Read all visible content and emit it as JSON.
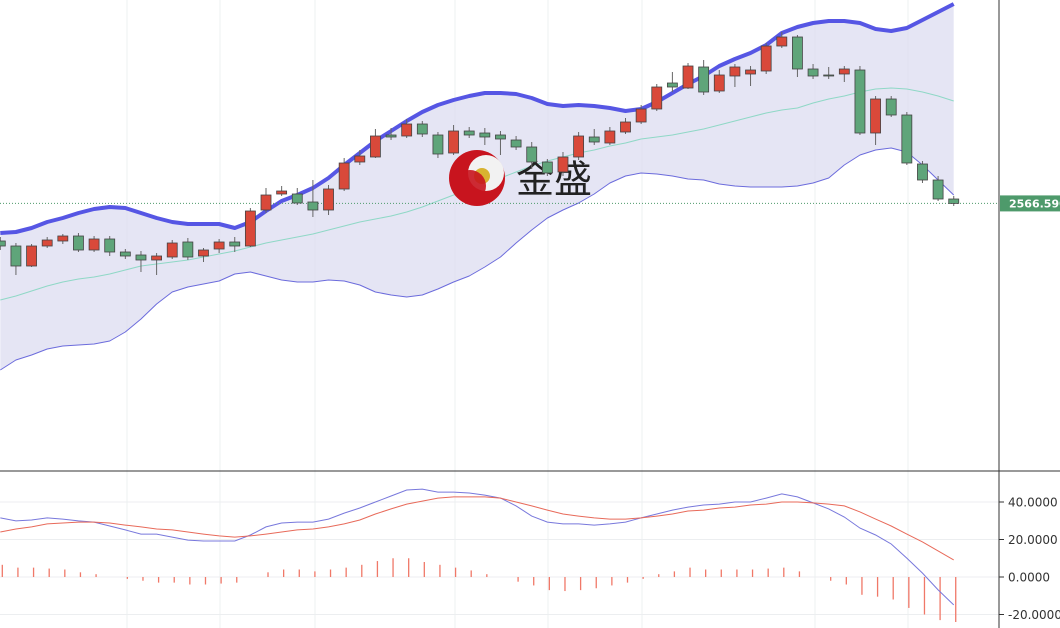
{
  "chart_data": [
    {
      "type": "candlestick",
      "watermark": "金盛",
      "up_color": "#d9493a",
      "down_color": "#5fa57a",
      "open": [
        2529,
        2524,
        2504,
        2524,
        2529,
        2534,
        2520,
        2531,
        2518,
        2515,
        2510,
        2513,
        2528,
        2514,
        2521,
        2528,
        2524,
        2560,
        2576,
        2576,
        2568,
        2560,
        2581,
        2608,
        2613,
        2635,
        2634,
        2646,
        2635,
        2617,
        2639,
        2637,
        2635,
        2630,
        2623,
        2608,
        2598,
        2613,
        2633,
        2627,
        2638,
        2648,
        2661,
        2687,
        2682,
        2703,
        2679,
        2694,
        2696,
        2699,
        2724,
        2733,
        2701,
        2695,
        2696,
        2700,
        2637,
        2671,
        2655,
        2606,
        2590,
        2571
      ],
      "high": [
        2533,
        2527,
        2526,
        2533,
        2536,
        2537,
        2534,
        2534,
        2521,
        2519,
        2517,
        2530,
        2532,
        2522,
        2531,
        2533,
        2562,
        2582,
        2584,
        2582,
        2590,
        2585,
        2612,
        2620,
        2641,
        2642,
        2651,
        2649,
        2638,
        2645,
        2643,
        2642,
        2639,
        2634,
        2628,
        2611,
        2618,
        2638,
        2641,
        2643,
        2652,
        2665,
        2686,
        2698,
        2707,
        2710,
        2700,
        2706,
        2704,
        2727,
        2738,
        2735,
        2706,
        2703,
        2704,
        2704,
        2674,
        2674,
        2658,
        2609,
        2594,
        2574
      ],
      "low": [
        2520,
        2495,
        2503,
        2522,
        2526,
        2518,
        2518,
        2514,
        2511,
        2498,
        2495,
        2511,
        2510,
        2508,
        2517,
        2518,
        2523,
        2557,
        2574,
        2565,
        2553,
        2555,
        2579,
        2605,
        2612,
        2630,
        2632,
        2633,
        2612,
        2615,
        2632,
        2625,
        2615,
        2620,
        2601,
        2594,
        2594,
        2610,
        2625,
        2625,
        2636,
        2646,
        2659,
        2678,
        2681,
        2675,
        2677,
        2683,
        2684,
        2696,
        2722,
        2693,
        2691,
        2691,
        2688,
        2635,
        2625,
        2653,
        2605,
        2587,
        2569,
        2564
      ],
      "close": [
        2524,
        2504,
        2524,
        2530,
        2534,
        2520,
        2531,
        2518,
        2514,
        2510,
        2514,
        2527,
        2513,
        2520,
        2528,
        2524,
        2559,
        2575,
        2579,
        2567,
        2560,
        2581,
        2607,
        2614,
        2634,
        2633,
        2646,
        2636,
        2616,
        2639,
        2635,
        2633,
        2631,
        2623,
        2608,
        2597,
        2613,
        2634,
        2628,
        2639,
        2648,
        2661,
        2683,
        2683,
        2704,
        2678,
        2695,
        2703,
        2700,
        2724,
        2733,
        2701,
        2694,
        2694,
        2701,
        2637,
        2671,
        2655,
        2607,
        2590,
        2571,
        2566.59
      ],
      "series": [
        {
          "color": "#5656e4",
          "values": [
            2537,
            2538,
            2542,
            2548,
            2552,
            2557,
            2561,
            2563,
            2562,
            2557,
            2552,
            2548,
            2546,
            2546,
            2546,
            2542,
            2548,
            2559,
            2569,
            2575,
            2582,
            2592,
            2605,
            2617,
            2629,
            2639,
            2649,
            2658,
            2665,
            2670,
            2674,
            2677,
            2677,
            2676,
            2672,
            2666,
            2664,
            2665,
            2664,
            2662,
            2659,
            2661,
            2668,
            2677,
            2686,
            2694,
            2704,
            2711,
            2717,
            2725,
            2737,
            2743,
            2747,
            2749,
            2749,
            2747,
            2741,
            2739,
            2742,
            2750,
            2758,
            2766
          ]
        },
        {
          "color": "#8fd8c6",
          "values": [
            2470,
            2474,
            2479,
            2484,
            2488,
            2491,
            2493,
            2496,
            2500,
            2504,
            2506,
            2508,
            2510,
            2513,
            2516,
            2519,
            2523,
            2527,
            2530,
            2533,
            2536,
            2540,
            2544,
            2548,
            2551,
            2554,
            2558,
            2563,
            2569,
            2575,
            2580,
            2585,
            2592,
            2598,
            2604,
            2609,
            2613,
            2617,
            2620,
            2624,
            2627,
            2631,
            2633,
            2635,
            2638,
            2641,
            2645,
            2649,
            2653,
            2657,
            2660,
            2662,
            2667,
            2671,
            2674,
            2678,
            2681,
            2682,
            2681,
            2678,
            2674,
            2669
          ]
        },
        {
          "color": "#6b6bdc",
          "values": [
            2400,
            2410,
            2415,
            2421,
            2424,
            2425,
            2426,
            2429,
            2438,
            2451,
            2466,
            2478,
            2483,
            2486,
            2489,
            2496,
            2498,
            2494,
            2490,
            2488,
            2488,
            2490,
            2489,
            2485,
            2478,
            2475,
            2473,
            2475,
            2481,
            2488,
            2494,
            2503,
            2513,
            2527,
            2540,
            2552,
            2560,
            2567,
            2576,
            2587,
            2594,
            2597,
            2596,
            2594,
            2591,
            2590,
            2586,
            2584,
            2583,
            2583,
            2583,
            2584,
            2587,
            2592,
            2605,
            2615,
            2620,
            2622,
            2618,
            2605,
            2590,
            2575
          ]
        }
      ],
      "band_fill": "#dcdcf0",
      "price_line": {
        "value": 2566.59,
        "label": "2566.590"
      },
      "price_line_color": "#4e9a6b",
      "ylim": [
        2300,
        2770
      ]
    },
    {
      "type": "macd",
      "series": [
        {
          "color": "#7878dc",
          "values": [
            31.5,
            29.9,
            30.4,
            31.5,
            30.9,
            29.9,
            29.3,
            27.2,
            25.1,
            22.9,
            22.9,
            21.3,
            19.7,
            19.2,
            19.2,
            19.2,
            22.4,
            26.7,
            28.8,
            29.3,
            29.3,
            30.9,
            34.1,
            36.8,
            40.0,
            43.2,
            46.4,
            46.9,
            45.3,
            45.3,
            44.8,
            43.7,
            42.1,
            37.9,
            32.5,
            29.3,
            28.3,
            28.3,
            27.7,
            28.3,
            29.3,
            31.5,
            33.6,
            35.7,
            37.3,
            38.4,
            38.9,
            40.0,
            40.0,
            42.1,
            44.3,
            42.7,
            39.5,
            36.3,
            32.0,
            26.1,
            22.4,
            17.6,
            10.1,
            2.1,
            -6.9,
            -14.9
          ]
        },
        {
          "color": "#e86a5a",
          "values": [
            24.0,
            25.6,
            26.7,
            28.3,
            28.8,
            29.3,
            29.3,
            28.8,
            27.7,
            26.7,
            25.6,
            25.1,
            24.0,
            22.9,
            21.9,
            21.3,
            21.9,
            22.9,
            24.0,
            25.1,
            25.6,
            26.7,
            28.3,
            30.4,
            33.6,
            36.3,
            38.9,
            40.5,
            42.1,
            42.7,
            42.7,
            42.7,
            42.1,
            40.0,
            37.9,
            35.7,
            33.6,
            32.5,
            31.5,
            30.9,
            30.9,
            31.5,
            32.5,
            33.6,
            35.2,
            35.7,
            36.8,
            37.3,
            38.4,
            38.9,
            40.0,
            40.0,
            39.5,
            38.9,
            37.9,
            34.7,
            30.9,
            27.2,
            22.9,
            18.7,
            13.9,
            9.1
          ]
        }
      ],
      "histogram": [
        6.5,
        5,
        5,
        4.5,
        4,
        2.5,
        1.5,
        0,
        -1,
        -2,
        -3,
        -3,
        -4,
        -4,
        -3.5,
        -3,
        0,
        2.5,
        4,
        4,
        3,
        4,
        5,
        6.5,
        8.5,
        10,
        10,
        8,
        6.5,
        5,
        3.5,
        1.5,
        0,
        -2.5,
        -4.5,
        -7,
        -7.5,
        -7,
        -6,
        -4.5,
        -3,
        -1,
        1.5,
        3,
        5,
        4,
        4,
        4,
        4,
        4.5,
        5,
        3,
        0,
        -2,
        -4,
        -9.5,
        -10.5,
        -12,
        -16.5,
        -20,
        -23,
        -24
      ],
      "histogram_color": "#f07868",
      "ylim": [
        -27.2,
        56
      ],
      "yticks": [
        {
          "value": 40,
          "label": "40.0000"
        },
        {
          "value": 20,
          "label": "20.0000"
        },
        {
          "value": 0,
          "label": "0.0000"
        },
        {
          "value": -20,
          "label": "-20.0000"
        }
      ],
      "grid": true
    }
  ]
}
